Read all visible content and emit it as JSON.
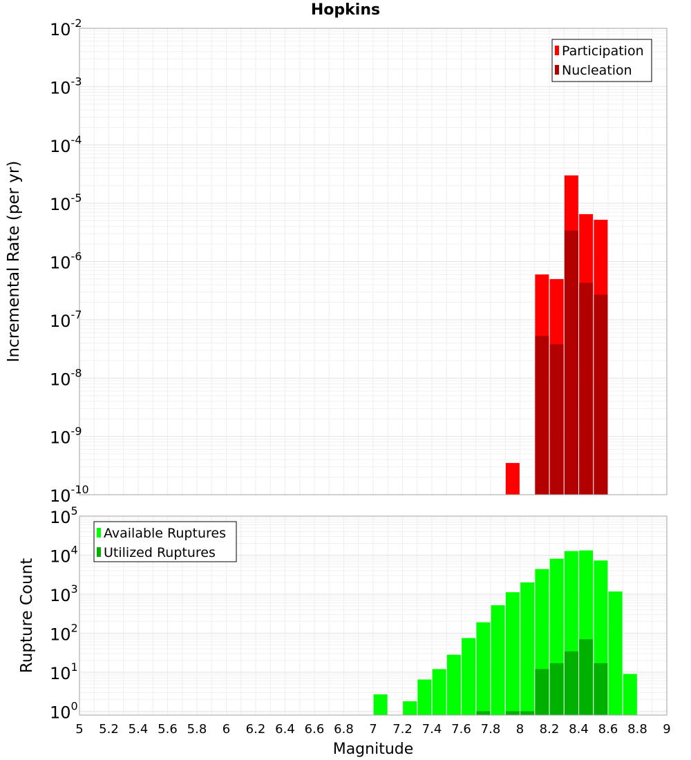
{
  "title": "Hopkins",
  "chart_data": [
    {
      "type": "bar",
      "ylabel": "Incremental Rate (per yr)",
      "yscale": "log",
      "ylim_exp": [
        -10,
        -2
      ],
      "y_tick_exponents": [
        -2,
        -3,
        -4,
        -5,
        -6,
        -7,
        -8,
        -9,
        -10
      ],
      "xlim": [
        5,
        9
      ],
      "legend_position": "top-right",
      "series": [
        {
          "name": "Participation",
          "color": "#ff0000",
          "points": [
            {
              "x": 7.95,
              "value": 3.5e-10
            },
            {
              "x": 8.15,
              "value": 6e-07
            },
            {
              "x": 8.25,
              "value": 5e-07
            },
            {
              "x": 8.35,
              "value": 3e-05
            },
            {
              "x": 8.45,
              "value": 6.5e-06
            },
            {
              "x": 8.55,
              "value": 5.2e-06
            }
          ]
        },
        {
          "name": "Nucleation",
          "color": "#b20000",
          "points": [
            {
              "x": 8.15,
              "value": 5.3e-08
            },
            {
              "x": 8.25,
              "value": 3.8e-08
            },
            {
              "x": 8.35,
              "value": 3.4e-06
            },
            {
              "x": 8.45,
              "value": 4.3e-07
            },
            {
              "x": 8.55,
              "value": 2.7e-07
            }
          ]
        }
      ]
    },
    {
      "type": "bar",
      "ylabel": "Rupture Count",
      "xlabel": "Magnitude",
      "yscale": "log",
      "ylim_exp": [
        -0.1,
        5
      ],
      "y_tick_exponents": [
        5,
        4,
        3,
        2,
        1,
        0
      ],
      "xlim": [
        5,
        9
      ],
      "x_ticks": [
        "5",
        "5.2",
        "5.4",
        "5.6",
        "5.8",
        "6",
        "6.2",
        "6.4",
        "6.6",
        "6.8",
        "7",
        "7.2",
        "7.4",
        "7.6",
        "7.8",
        "8",
        "8.2",
        "8.4",
        "8.6",
        "8.8",
        "9"
      ],
      "legend_position": "top-left",
      "series": [
        {
          "name": "Available Ruptures",
          "color": "#00ff00",
          "points": [
            {
              "x": 7.05,
              "value": 2.7
            },
            {
              "x": 7.25,
              "value": 1.8
            },
            {
              "x": 7.35,
              "value": 6.5
            },
            {
              "x": 7.45,
              "value": 12
            },
            {
              "x": 7.55,
              "value": 28
            },
            {
              "x": 7.65,
              "value": 75
            },
            {
              "x": 7.75,
              "value": 190
            },
            {
              "x": 7.85,
              "value": 520
            },
            {
              "x": 7.95,
              "value": 1120
            },
            {
              "x": 8.05,
              "value": 2000
            },
            {
              "x": 8.15,
              "value": 4400
            },
            {
              "x": 8.25,
              "value": 8100
            },
            {
              "x": 8.35,
              "value": 12700
            },
            {
              "x": 8.45,
              "value": 13200
            },
            {
              "x": 8.55,
              "value": 7300
            },
            {
              "x": 8.65,
              "value": 1170
            },
            {
              "x": 8.75,
              "value": 9
            }
          ]
        },
        {
          "name": "Utilized Ruptures",
          "color": "#00b000",
          "points": [
            {
              "x": 7.75,
              "value": 1
            },
            {
              "x": 7.95,
              "value": 1
            },
            {
              "x": 8.05,
              "value": 1
            },
            {
              "x": 8.15,
              "value": 12
            },
            {
              "x": 8.25,
              "value": 17
            },
            {
              "x": 8.35,
              "value": 34
            },
            {
              "x": 8.45,
              "value": 70
            },
            {
              "x": 8.55,
              "value": 17
            }
          ]
        }
      ]
    }
  ]
}
